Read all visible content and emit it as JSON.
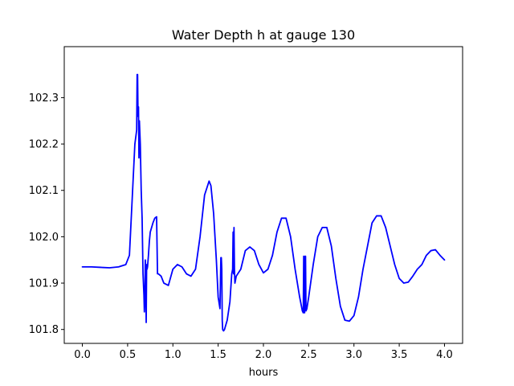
{
  "chart_data": {
    "type": "line",
    "title": "Water Depth h at gauge 130",
    "xlabel": "hours",
    "ylabel": "",
    "xlim": [
      -0.2,
      4.2
    ],
    "ylim": [
      101.77,
      102.41
    ],
    "xticks": [
      0.0,
      0.5,
      1.0,
      1.5,
      2.0,
      2.5,
      3.0,
      3.5,
      4.0
    ],
    "xtick_labels": [
      "0.0",
      "0.5",
      "1.0",
      "1.5",
      "2.0",
      "2.5",
      "3.0",
      "3.5",
      "4.0"
    ],
    "yticks": [
      101.8,
      101.9,
      102.0,
      102.1,
      102.2,
      102.3
    ],
    "ytick_labels": [
      "101.8",
      "101.9",
      "102.0",
      "102.1",
      "102.2",
      "102.3"
    ],
    "grid": false,
    "series": [
      {
        "color": "#0000ff",
        "x": [
          0.0,
          0.1,
          0.2,
          0.3,
          0.4,
          0.48,
          0.52,
          0.55,
          0.58,
          0.6,
          0.605,
          0.61,
          0.615,
          0.62,
          0.625,
          0.63,
          0.64,
          0.65,
          0.66,
          0.67,
          0.68,
          0.685,
          0.69,
          0.695,
          0.7,
          0.705,
          0.71,
          0.715,
          0.72,
          0.73,
          0.74,
          0.75,
          0.78,
          0.8,
          0.82,
          0.83,
          0.835,
          0.84,
          0.87,
          0.9,
          0.95,
          1.0,
          1.05,
          1.1,
          1.15,
          1.2,
          1.25,
          1.3,
          1.35,
          1.4,
          1.42,
          1.45,
          1.48,
          1.5,
          1.52,
          1.53,
          1.535,
          1.54,
          1.545,
          1.55,
          1.555,
          1.56,
          1.57,
          1.6,
          1.63,
          1.65,
          1.66,
          1.665,
          1.67,
          1.675,
          1.68,
          1.685,
          1.7,
          1.75,
          1.8,
          1.85,
          1.9,
          1.95,
          2.0,
          2.05,
          2.1,
          2.15,
          2.2,
          2.25,
          2.3,
          2.35,
          2.4,
          2.43,
          2.44,
          2.445,
          2.45,
          2.455,
          2.46,
          2.465,
          2.47,
          2.48,
          2.5,
          2.55,
          2.6,
          2.65,
          2.7,
          2.75,
          2.8,
          2.85,
          2.9,
          2.95,
          3.0,
          3.05,
          3.1,
          3.15,
          3.2,
          3.25,
          3.3,
          3.35,
          3.4,
          3.45,
          3.5,
          3.55,
          3.6,
          3.65,
          3.7,
          3.75,
          3.8,
          3.85,
          3.9,
          3.95,
          4.0
        ],
        "y": [
          101.935,
          101.935,
          101.934,
          101.933,
          101.935,
          101.94,
          101.96,
          102.08,
          102.2,
          102.23,
          102.35,
          102.35,
          102.26,
          102.28,
          102.17,
          102.25,
          102.2,
          102.1,
          102.04,
          101.92,
          101.875,
          101.838,
          101.862,
          101.95,
          101.93,
          101.815,
          101.94,
          101.93,
          101.935,
          101.96,
          101.99,
          102.01,
          102.03,
          102.04,
          102.043,
          101.92,
          101.92,
          101.92,
          101.915,
          101.9,
          101.895,
          101.93,
          101.94,
          101.935,
          101.92,
          101.915,
          101.93,
          102.0,
          102.09,
          102.12,
          102.11,
          102.05,
          101.95,
          101.87,
          101.845,
          101.955,
          101.955,
          101.93,
          101.82,
          101.8,
          101.798,
          101.797,
          101.8,
          101.82,
          101.86,
          101.92,
          101.93,
          102.01,
          101.92,
          102.02,
          101.93,
          101.9,
          101.915,
          101.93,
          101.97,
          101.978,
          101.97,
          101.94,
          101.922,
          101.93,
          101.96,
          102.01,
          102.04,
          102.04,
          102.0,
          101.93,
          101.87,
          101.84,
          101.836,
          101.958,
          101.955,
          101.836,
          101.958,
          101.958,
          101.84,
          101.845,
          101.87,
          101.94,
          102.0,
          102.02,
          102.02,
          101.98,
          101.91,
          101.85,
          101.82,
          101.818,
          101.83,
          101.87,
          101.93,
          101.98,
          102.03,
          102.045,
          102.045,
          102.02,
          101.98,
          101.94,
          101.91,
          101.9,
          101.902,
          101.915,
          101.93,
          101.94,
          101.96,
          101.97,
          101.972,
          101.96,
          101.95
        ]
      }
    ]
  }
}
